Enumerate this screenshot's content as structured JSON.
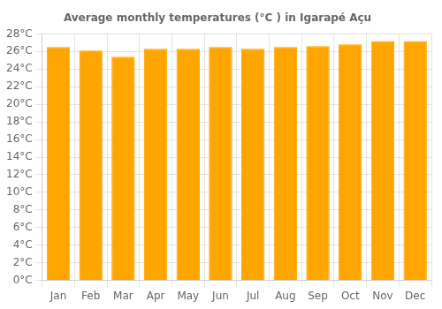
{
  "chart_data": {
    "type": "bar",
    "title": "Average monthly temperatures (°C ) in Igarapé Açu",
    "categories": [
      "Jan",
      "Feb",
      "Mar",
      "Apr",
      "May",
      "Jun",
      "Jul",
      "Aug",
      "Sep",
      "Oct",
      "Nov",
      "Dec"
    ],
    "values": [
      26.5,
      26.1,
      25.4,
      26.3,
      26.3,
      26.5,
      26.3,
      26.5,
      26.6,
      26.8,
      27.2,
      27.2
    ],
    "color": "#FFA500",
    "ylim": [
      0,
      28
    ],
    "yticks": [
      {
        "value": 0,
        "label": "0°C"
      },
      {
        "value": 2,
        "label": "2°C"
      },
      {
        "value": 4,
        "label": "4°C"
      },
      {
        "value": 6,
        "label": "6°C"
      },
      {
        "value": 8,
        "label": "8°C"
      },
      {
        "value": 10,
        "label": "10°C"
      },
      {
        "value": 12,
        "label": "12°C"
      },
      {
        "value": 14,
        "label": "14°C"
      },
      {
        "value": 16,
        "label": "16°C"
      },
      {
        "value": 18,
        "label": "18°C"
      },
      {
        "value": 20,
        "label": "20°C"
      },
      {
        "value": 22,
        "label": "22°C"
      },
      {
        "value": 24,
        "label": "24°C"
      },
      {
        "value": 26,
        "label": "26°C"
      },
      {
        "value": 28,
        "label": "28°C"
      }
    ],
    "grid": true
  }
}
